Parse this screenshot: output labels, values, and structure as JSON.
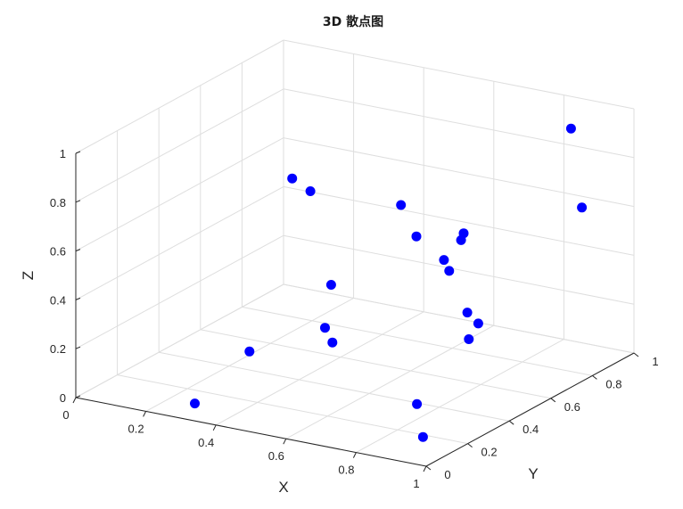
{
  "chart_data": {
    "type": "scatter",
    "dimension": "3d",
    "title": "3D 散点图",
    "xlabel": "X",
    "ylabel": "Y",
    "zlabel": "Z",
    "xlim": [
      0,
      1
    ],
    "ylim": [
      0,
      1
    ],
    "zlim": [
      0,
      1
    ],
    "xticks": [
      "0",
      "0.2",
      "0.4",
      "0.6",
      "0.8",
      "1"
    ],
    "yticks": [
      "0",
      "0.2",
      "0.4",
      "0.6",
      "0.8",
      "1"
    ],
    "zticks": [
      "0",
      "0.2",
      "0.4",
      "0.6",
      "0.8",
      "1"
    ],
    "grid": true,
    "marker_color": "#0000ff",
    "points": [
      {
        "x": 0.59,
        "y": 0.57,
        "z": 0.69
      },
      {
        "x": 0.84,
        "y": 0.45,
        "z": 0.7
      },
      {
        "x": 0.25,
        "y": 0.62,
        "z": 0.68
      },
      {
        "x": 0.64,
        "y": 0.56,
        "z": 0.58
      },
      {
        "x": 0.97,
        "y": 0.8,
        "z": 0.68
      },
      {
        "x": 0.71,
        "y": 0.6,
        "z": 0.44
      },
      {
        "x": 0.6,
        "y": 0.76,
        "z": 0.38
      },
      {
        "x": 0.56,
        "y": 0.91,
        "z": 0.38
      },
      {
        "x": 0.29,
        "y": 0.74,
        "z": 0.2
      },
      {
        "x": 0.76,
        "y": 0.61,
        "z": 0.17
      },
      {
        "x": 0.48,
        "y": 0.39,
        "z": 0.24
      },
      {
        "x": 0.59,
        "y": 0.24,
        "z": 0.28
      },
      {
        "x": 0.3,
        "y": 0.33,
        "z": 0.12
      },
      {
        "x": 0.72,
        "y": 0.67,
        "z": 0.24
      },
      {
        "x": 0.71,
        "y": 0.74,
        "z": 0.16
      },
      {
        "x": 0.45,
        "y": 0.37,
        "z": 0.8
      },
      {
        "x": 0.76,
        "y": 0.36,
        "z": 0.02
      },
      {
        "x": 0.89,
        "y": 0.17,
        "z": 0.01
      },
      {
        "x": 0.31,
        "y": 0.05,
        "z": 0.04
      },
      {
        "x": 0.85,
        "y": 0.95,
        "z": 0.9
      }
    ]
  }
}
